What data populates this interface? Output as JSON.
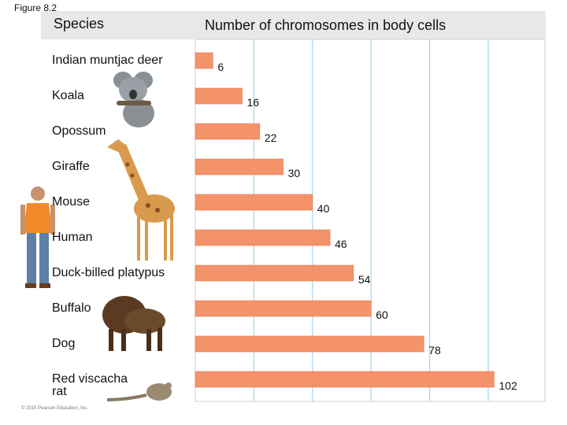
{
  "figure_label": "Figure 8.2",
  "species_header": "Species",
  "copyright": "© 2015 Pearson Education, Inc.",
  "icons": [
    "koala-icon",
    "giraffe-icon",
    "human-icon",
    "buffalo-icon",
    "rat-icon"
  ],
  "colors": {
    "bar": "#f4936a",
    "bar_stroke": "#e07a50",
    "grid": "#a9d3ea",
    "header_bg": "#e8e8e8"
  },
  "chart_data": {
    "type": "bar",
    "orientation": "horizontal",
    "title": "Number of chromosomes in body cells",
    "categories": [
      "Indian muntjac deer",
      "Koala",
      "Opossum",
      "Giraffe",
      "Mouse",
      "Human",
      "Duck-billed platypus",
      "Buffalo",
      "Dog",
      "Red viscacha rat"
    ],
    "values": [
      6,
      16,
      22,
      30,
      40,
      46,
      54,
      60,
      78,
      102
    ],
    "xlim": [
      0,
      120
    ],
    "grid": true
  }
}
